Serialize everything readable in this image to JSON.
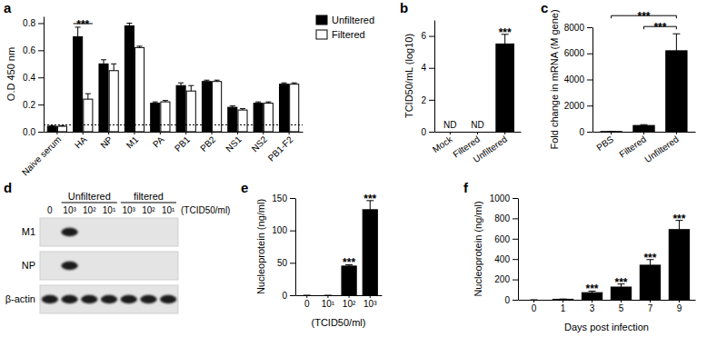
{
  "chart_data": [
    {
      "panel": "a",
      "type": "bar",
      "y_label": "O.D 450 nm",
      "categories": [
        "Naive serum",
        "HA",
        "NP",
        "M1",
        "PA",
        "PB1",
        "PB2",
        "NS1",
        "NS2",
        "PB1-F2"
      ],
      "series": [
        {
          "name": "Unfiltered",
          "color": "#000000",
          "values": [
            0.04,
            0.7,
            0.5,
            0.78,
            0.21,
            0.34,
            0.37,
            0.18,
            0.21,
            0.35
          ],
          "errors": [
            0.005,
            0.07,
            0.03,
            0.02,
            0.01,
            0.02,
            0.01,
            0.01,
            0.01,
            0.01
          ]
        },
        {
          "name": "Filtered",
          "color": "#ffffff",
          "values": [
            0.04,
            0.24,
            0.45,
            0.62,
            0.22,
            0.3,
            0.37,
            0.16,
            0.21,
            0.35
          ],
          "errors": [
            0.005,
            0.04,
            0.05,
            0.01,
            0.01,
            0.04,
            0.01,
            0.01,
            0.01,
            0.01
          ]
        }
      ],
      "ylim": [
        0,
        0.85
      ],
      "yticks": [
        {
          "value": 0,
          "label": "0.0"
        },
        0.2,
        0.4,
        0.6,
        0.8
      ],
      "reference_line": 0.05,
      "legend": "right",
      "significance": [
        {
          "text": "***",
          "from": "HA",
          "to": "HA"
        }
      ]
    },
    {
      "panel": "b",
      "type": "bar",
      "y_label": "TCID50/mL (log10)",
      "categories": [
        "Mock",
        "Filtered",
        "Unfiltered"
      ],
      "values": [
        null,
        null,
        5.5
      ],
      "errors": [
        null,
        null,
        0.6
      ],
      "value_labels": [
        "ND",
        "ND",
        null
      ],
      "color": "#000000",
      "ylim": [
        0,
        7
      ],
      "yticks": [
        0,
        2,
        4,
        6
      ],
      "significance": [
        {
          "text": "***",
          "from": "Unfiltered",
          "to": "Unfiltered"
        }
      ]
    },
    {
      "panel": "c",
      "type": "bar",
      "y_label": "Fold change in mRNA (M gene)",
      "categories": [
        "PBS",
        "Filtered",
        "Unfiltered"
      ],
      "values": [
        15,
        480,
        6200
      ],
      "errors": [
        5,
        60,
        1300
      ],
      "color": "#000000",
      "ylim": [
        0,
        8000
      ],
      "yticks": [
        0,
        2000,
        4000,
        6000,
        8000
      ],
      "significance": [
        {
          "text": "***",
          "from": "Filtered",
          "to": "Unfiltered"
        },
        {
          "text": "***",
          "from": "PBS",
          "to": "Unfiltered"
        }
      ]
    },
    {
      "panel": "d",
      "type": "blot",
      "unit_label": "(TCID50/ml)",
      "lanes": [
        {
          "label": "0",
          "group": null
        },
        {
          "label": "10³",
          "group": "Unfiltered"
        },
        {
          "label": "10²",
          "group": "Unfiltered"
        },
        {
          "label": "10¹",
          "group": "Unfiltered"
        },
        {
          "label": "10³",
          "group": "filtered"
        },
        {
          "label": "10²",
          "group": "filtered"
        },
        {
          "label": "10¹",
          "group": "filtered"
        }
      ],
      "rows": [
        {
          "label": "M1",
          "bands": [
            false,
            true,
            false,
            false,
            false,
            false,
            false
          ]
        },
        {
          "label": "NP",
          "bands": [
            false,
            true,
            false,
            false,
            false,
            false,
            false
          ]
        },
        {
          "label": "β-actin",
          "bands": [
            true,
            true,
            true,
            true,
            true,
            true,
            true
          ]
        }
      ]
    },
    {
      "panel": "e",
      "type": "bar",
      "y_label": "Nucleoprotein (ng/ml)",
      "x_label": "(TCID50/ml)",
      "categories": [
        "0",
        "10¹",
        "10²",
        "10³"
      ],
      "values": [
        0,
        0,
        45,
        132
      ],
      "errors": [
        0,
        0,
        2,
        14
      ],
      "color": "#000000",
      "ylim": [
        0,
        150
      ],
      "yticks": [
        0,
        50,
        100,
        150
      ],
      "significance": [
        {
          "text": "***",
          "from": "10²",
          "to": "10²"
        },
        {
          "text": "***",
          "from": "10³",
          "to": "10³"
        }
      ]
    },
    {
      "panel": "f",
      "type": "bar",
      "y_label": "Nucleoprotein (ng/ml)",
      "x_label": "Days post infection",
      "categories": [
        "0",
        "1",
        "3",
        "5",
        "7",
        "9"
      ],
      "values": [
        0,
        5,
        70,
        125,
        340,
        690
      ],
      "errors": [
        0,
        2,
        15,
        30,
        55,
        90
      ],
      "color": "#000000",
      "ylim": [
        0,
        1000
      ],
      "yticks": [
        0,
        200,
        400,
        600,
        800,
        1000
      ],
      "significance": [
        {
          "text": "***",
          "from": "3",
          "to": "3"
        },
        {
          "text": "***",
          "from": "5",
          "to": "5"
        },
        {
          "text": "***",
          "from": "7",
          "to": "7"
        },
        {
          "text": "***",
          "from": "9",
          "to": "9"
        }
      ]
    }
  ]
}
